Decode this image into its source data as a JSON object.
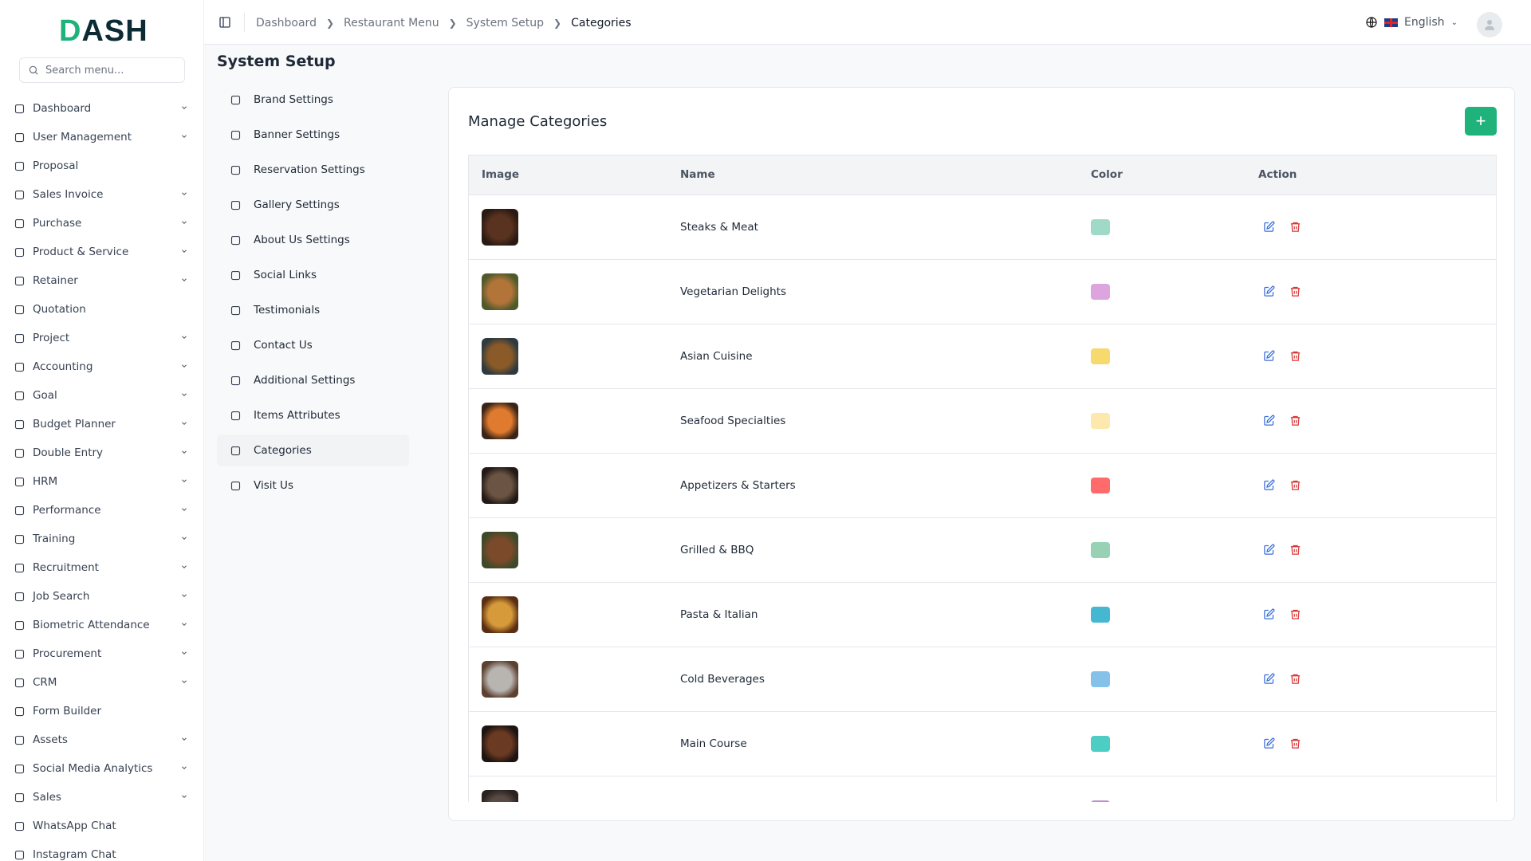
{
  "brand": {
    "logo": "DASH"
  },
  "sidebar": {
    "search_placeholder": "Search menu...",
    "items": [
      {
        "label": "Dashboard",
        "icon": "dashboard-icon",
        "expand": true
      },
      {
        "label": "User Management",
        "icon": "users-icon",
        "expand": true
      },
      {
        "label": "Proposal",
        "icon": "proposal-icon",
        "expand": false
      },
      {
        "label": "Sales Invoice",
        "icon": "invoice-icon",
        "expand": true
      },
      {
        "label": "Purchase",
        "icon": "cart-icon",
        "expand": true
      },
      {
        "label": "Product & Service",
        "icon": "layers-icon",
        "expand": true
      },
      {
        "label": "Retainer",
        "icon": "save-icon",
        "expand": true
      },
      {
        "label": "Quotation",
        "icon": "file-check-icon",
        "expand": false
      },
      {
        "label": "Project",
        "icon": "folder-icon",
        "expand": true
      },
      {
        "label": "Accounting",
        "icon": "calculator-icon",
        "expand": true
      },
      {
        "label": "Goal",
        "icon": "target-icon",
        "expand": true
      },
      {
        "label": "Budget Planner",
        "icon": "dollar-icon",
        "expand": true
      },
      {
        "label": "Double Entry",
        "icon": "book-icon",
        "expand": true
      },
      {
        "label": "HRM",
        "icon": "user-cog-icon",
        "expand": true
      },
      {
        "label": "Performance",
        "icon": "trend-icon",
        "expand": true
      },
      {
        "label": "Training",
        "icon": "graduation-cap-icon",
        "expand": true
      },
      {
        "label": "Recruitment",
        "icon": "users-icon",
        "expand": true
      },
      {
        "label": "Job Search",
        "icon": "search-icon",
        "expand": true
      },
      {
        "label": "Biometric Attendance",
        "icon": "fingerprint-icon",
        "expand": true
      },
      {
        "label": "Procurement",
        "icon": "luggage-icon",
        "expand": true
      },
      {
        "label": "CRM",
        "icon": "contact-icon",
        "expand": true
      },
      {
        "label": "Form Builder",
        "icon": "form-icon",
        "expand": false
      },
      {
        "label": "Assets",
        "icon": "building-icon",
        "expand": true
      },
      {
        "label": "Social Media Analytics",
        "icon": "bar-chart-icon",
        "expand": true
      },
      {
        "label": "Sales",
        "icon": "handshake-icon",
        "expand": true
      },
      {
        "label": "WhatsApp Chat",
        "icon": "message-icon",
        "expand": false
      },
      {
        "label": "Instagram Chat",
        "icon": "send-icon",
        "expand": false
      }
    ]
  },
  "header": {
    "breadcrumbs": [
      "Dashboard",
      "Restaurant Menu",
      "System Setup",
      "Categories"
    ],
    "language": "English"
  },
  "page": {
    "title": "System Setup"
  },
  "settings_menu": [
    {
      "label": "Brand Settings",
      "icon": "tag-icon"
    },
    {
      "label": "Banner Settings",
      "icon": "image-icon"
    },
    {
      "label": "Reservation Settings",
      "icon": "calendar-icon"
    },
    {
      "label": "Gallery Settings",
      "icon": "gallery-icon"
    },
    {
      "label": "About Us Settings",
      "icon": "info-icon"
    },
    {
      "label": "Social Links",
      "icon": "share-icon"
    },
    {
      "label": "Testimonials",
      "icon": "message-icon"
    },
    {
      "label": "Contact Us",
      "icon": "phone-icon"
    },
    {
      "label": "Additional Settings",
      "icon": "gear-icon"
    },
    {
      "label": "Items Attributes",
      "icon": "wrench-icon"
    },
    {
      "label": "Categories",
      "icon": "folder-icon",
      "active": true
    },
    {
      "label": "Visit Us",
      "icon": "mail-icon"
    }
  ],
  "card": {
    "title": "Manage Categories",
    "add_label": "+"
  },
  "table": {
    "columns": [
      "Image",
      "Name",
      "Color",
      "Action"
    ],
    "rows": [
      {
        "name": "Steaks & Meat",
        "color": "#9fd9c8",
        "img": [
          "#5a3220",
          "#2b1a12"
        ]
      },
      {
        "name": "Vegetarian Delights",
        "color": "#dca5e0",
        "img": [
          "#b3743a",
          "#4f5a2a"
        ]
      },
      {
        "name": "Asian Cuisine",
        "color": "#f6da6e",
        "img": [
          "#8a5a28",
          "#2e3a3f"
        ]
      },
      {
        "name": "Seafood Specialties",
        "color": "#fde8ad",
        "img": [
          "#e07a2e",
          "#3a2418"
        ]
      },
      {
        "name": "Appetizers & Starters",
        "color": "#ff6b6b",
        "img": [
          "#6b5444",
          "#231a15"
        ]
      },
      {
        "name": "Grilled & BBQ",
        "color": "#98d1b4",
        "img": [
          "#7a4a2a",
          "#3d4a2a"
        ]
      },
      {
        "name": "Pasta & Italian",
        "color": "#45b7d1",
        "img": [
          "#d79a3a",
          "#5a2e12"
        ]
      },
      {
        "name": "Cold Beverages",
        "color": "#85c1e9",
        "img": [
          "#b8b4b0",
          "#5c4030"
        ]
      },
      {
        "name": "Main Course",
        "color": "#4ecdc4",
        "img": [
          "#6a3a22",
          "#1c1410"
        ]
      },
      {
        "name": "",
        "color": "#bb8fce",
        "img": [
          "#5a4a44",
          "#2a2220"
        ]
      }
    ]
  },
  "colors": {
    "accent": "#1fb37b",
    "edit": "#3b6fd8",
    "delete": "#d93636"
  }
}
